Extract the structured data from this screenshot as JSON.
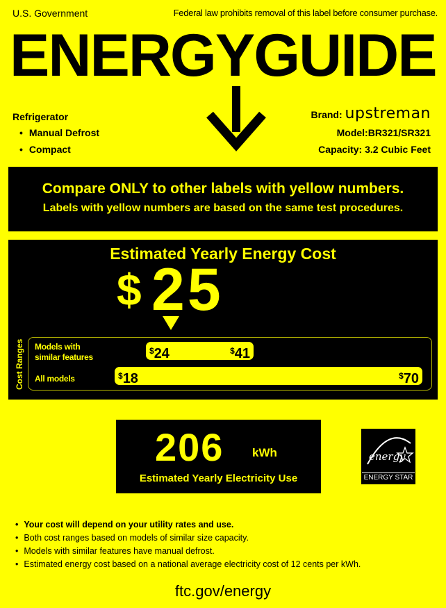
{
  "header": {
    "left": "U.S. Government",
    "right": "Federal law prohibits removal of this label before consumer purchase.",
    "title": "ENERGYGUIDE"
  },
  "product": {
    "type": "Refrigerator",
    "features": [
      "Manual Defrost",
      "Compact"
    ]
  },
  "brand": {
    "label": "Brand:",
    "name": "upstreman",
    "model": "Model:BR321/SR321",
    "capacity": "Capacity: 3.2 Cubic Feet"
  },
  "compare": {
    "line1": "Compare ONLY to other labels with yellow numbers.",
    "line2": "Labels with yellow numbers are based on the same test procedures."
  },
  "cost": {
    "title": "Estimated Yearly Energy Cost",
    "currency": "$",
    "value": "25",
    "ranges_label": "Cost Ranges",
    "similar": {
      "label_line1": "Models with",
      "label_line2": "similar features",
      "low": "24",
      "high": "41"
    },
    "all": {
      "label": "All models",
      "low": "18",
      "high": "70"
    }
  },
  "electricity": {
    "value": "206",
    "unit": "kWh",
    "label": "Estimated Yearly Electricity Use"
  },
  "energy_star": {
    "label": "ENERGY STAR",
    "logo_text": "energy"
  },
  "notes": [
    "Your cost will depend on your utility rates and use.",
    "Both cost ranges based on models of similar size capacity.",
    "Models with similar features have manual defrost.",
    "Estimated energy cost based on a national average electricity cost of 12 cents per kWh."
  ],
  "footer": "ftc.gov/energy",
  "colors": {
    "background": "#ffff00",
    "panel": "#000000"
  }
}
